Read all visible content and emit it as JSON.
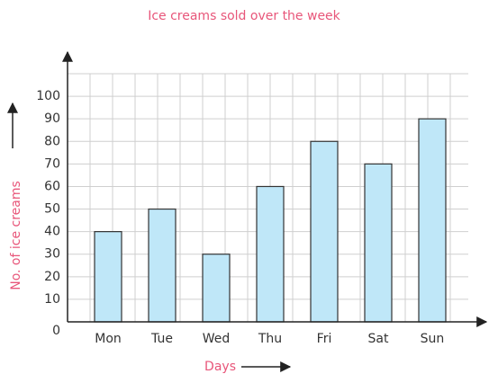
{
  "chart_data": {
    "type": "bar",
    "title": "Ice creams sold over the week",
    "x_label": "Days",
    "y_label": "No. of ice creams",
    "categories": [
      "Mon",
      "Tue",
      "Wed",
      "Thu",
      "Fri",
      "Sat",
      "Sun"
    ],
    "values": [
      40,
      50,
      30,
      60,
      80,
      70,
      90
    ],
    "color": "#bfe7f8",
    "ylim": [
      0,
      110
    ],
    "yticks": [
      0,
      10,
      20,
      30,
      40,
      50,
      60,
      70,
      80,
      90,
      100
    ],
    "grid": true
  }
}
